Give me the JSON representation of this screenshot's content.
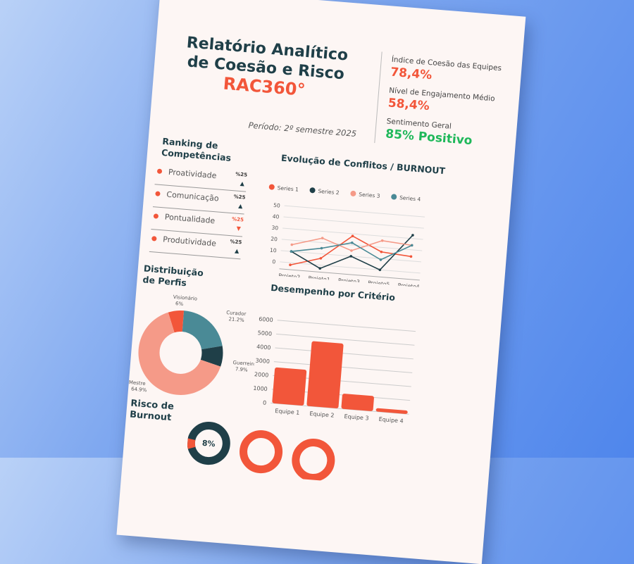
{
  "header": {
    "title_line1": "Relatório Analítico",
    "title_line2": "de Coesão e Risco",
    "code": "RAC360°",
    "period": "Período: 2º semestre 2025"
  },
  "kpis": [
    {
      "label": "Índice de Coesão das Equipes",
      "value": "78,4%",
      "color": "#f2563a"
    },
    {
      "label": "Nível de Engajamento Médio",
      "value": "58,4%",
      "color": "#f2563a"
    },
    {
      "label": "Sentimento Geral",
      "value": "85% Positivo",
      "color": "#1fb85a"
    }
  ],
  "ranking": {
    "title_line1": "Ranking de",
    "title_line2": "Competências",
    "items": [
      {
        "label": "Proatividade",
        "value": "%25",
        "trend": "up"
      },
      {
        "label": "Comunicação",
        "value": "%25",
        "trend": "up"
      },
      {
        "label": "Pontualidade",
        "value": "%25",
        "trend": "down"
      },
      {
        "label": "Produtividade",
        "value": "%25",
        "trend": "up"
      }
    ]
  },
  "profiles_title_line1": "Distribuição",
  "profiles_title_line2": "de Perfis",
  "burnout_title_line1": "Risco de",
  "burnout_title_line2": "Burnout",
  "burnout_gauges": [
    {
      "label": "8%",
      "value": 8
    },
    {
      "label": "",
      "value": null
    },
    {
      "label": "",
      "value": null
    }
  ],
  "chart_data": [
    {
      "type": "line",
      "title": "Evolução de Conflitos / BURNOUT",
      "categories": [
        "Projeto2",
        "Projeto1",
        "Projeto3",
        "Projeto5",
        "Projeto4"
      ],
      "ylim": [
        0,
        50
      ],
      "yticks": [
        0,
        10,
        20,
        30,
        40,
        50
      ],
      "legend": "top",
      "grid": true,
      "series": [
        {
          "name": "Series 1",
          "color": "#f2563a",
          "values": [
            -2,
            6,
            28,
            16,
            14
          ]
        },
        {
          "name": "Series 2",
          "color": "#1f3f48",
          "values": [
            10,
            -3,
            10,
            0,
            33
          ]
        },
        {
          "name": "Series 3",
          "color": "#f59a88",
          "values": [
            16,
            24,
            15,
            26,
            24
          ]
        },
        {
          "name": "Series 4",
          "color": "#4a8a96",
          "values": [
            10,
            15,
            22,
            9,
            24
          ]
        }
      ]
    },
    {
      "type": "pie",
      "title": "Distribuição de Perfis",
      "donut": true,
      "slices": [
        {
          "label": "Visionário",
          "pct": "6%",
          "value": 6,
          "color": "#f2563a"
        },
        {
          "label": "Curador",
          "pct": "21.2%",
          "value": 21.2,
          "color": "#4a8a96"
        },
        {
          "label": "Guerreiro",
          "pct": "7.9%",
          "value": 7.9,
          "color": "#1f3f48"
        },
        {
          "label": "Mestre",
          "pct": "64.9%",
          "value": 64.9,
          "color": "#f59a88"
        }
      ]
    },
    {
      "type": "bar",
      "title": "Desempenho por Critério",
      "categories": [
        "Equipe 1",
        "Equipe 2",
        "Equipe 3",
        "Equipe 4"
      ],
      "values": [
        2600,
        4700,
        1100,
        250
      ],
      "ylim": [
        0,
        6000
      ],
      "yticks": [
        0,
        1000,
        2000,
        3000,
        4000,
        5000,
        6000
      ],
      "color": "#f2563a",
      "grid": true
    }
  ]
}
